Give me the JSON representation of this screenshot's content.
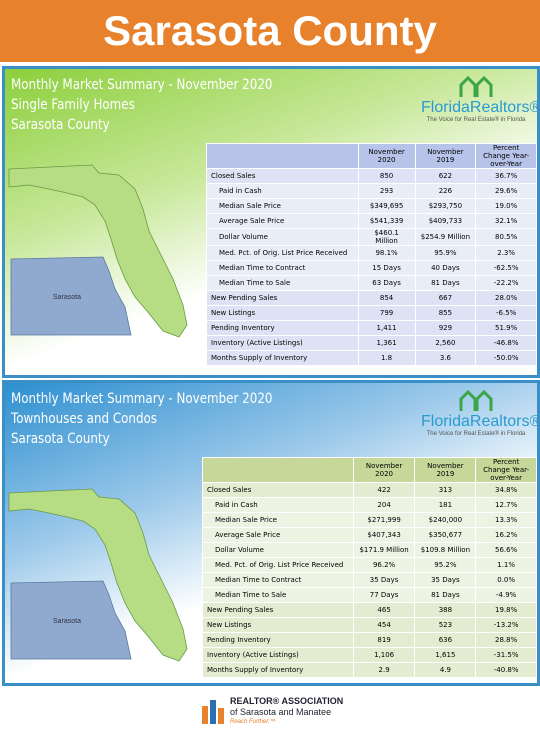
{
  "header": {
    "title": "Sarasota County"
  },
  "panels": [
    {
      "title": "Monthly Market Summary - November 2020",
      "subtitle": "Single Family Homes",
      "county": "Sarasota County",
      "logo": {
        "name": "FloridaRealtors®",
        "tagline": "The Voice for Real Estate® in Florida"
      },
      "map_label": "Sarasota",
      "table": {
        "headers": [
          "November 2020",
          "November 2019",
          "Percent Change Year-over-Year"
        ],
        "rows": [
          [
            "Closed Sales",
            "850",
            "622",
            "36.7%"
          ],
          [
            "Paid in Cash",
            "293",
            "226",
            "29.6%"
          ],
          [
            "Median Sale Price",
            "$349,695",
            "$293,750",
            "19.0%"
          ],
          [
            "Average Sale Price",
            "$541,339",
            "$409,733",
            "32.1%"
          ],
          [
            "Dollar Volume",
            "$460.1 Million",
            "$254.9 Million",
            "80.5%"
          ],
          [
            "Med. Pct. of Orig. List Price Received",
            "98.1%",
            "95.9%",
            "2.3%"
          ],
          [
            "Median Time to Contract",
            "15 Days",
            "40 Days",
            "-62.5%"
          ],
          [
            "Median Time to Sale",
            "63 Days",
            "81 Days",
            "-22.2%"
          ],
          [
            "New Pending Sales",
            "854",
            "667",
            "28.0%"
          ],
          [
            "New Listings",
            "799",
            "855",
            "-6.5%"
          ],
          [
            "Pending Inventory",
            "1,411",
            "929",
            "51.9%"
          ],
          [
            "Inventory (Active Listings)",
            "1,361",
            "2,560",
            "-46.8%"
          ],
          [
            "Months Supply of Inventory",
            "1.8",
            "3.6",
            "-50.0%"
          ]
        ]
      }
    },
    {
      "title": "Monthly Market Summary - November 2020",
      "subtitle": "Townhouses and Condos",
      "county": "Sarasota County",
      "logo": {
        "name": "FloridaRealtors®",
        "tagline": "The Voice for Real Estate® in Florida"
      },
      "map_label": "Sarasota",
      "table": {
        "headers": [
          "November 2020",
          "November 2019",
          "Percent Change Year-over-Year"
        ],
        "rows": [
          [
            "Closed Sales",
            "422",
            "313",
            "34.8%"
          ],
          [
            "Paid in Cash",
            "204",
            "181",
            "12.7%"
          ],
          [
            "Median Sale Price",
            "$271,999",
            "$240,000",
            "13.3%"
          ],
          [
            "Average Sale Price",
            "$407,343",
            "$350,677",
            "16.2%"
          ],
          [
            "Dollar Volume",
            "$171.9 Million",
            "$109.8 Million",
            "56.6%"
          ],
          [
            "Med. Pct. of Orig. List Price Received",
            "96.2%",
            "95.2%",
            "1.1%"
          ],
          [
            "Median Time to Contract",
            "35 Days",
            "35 Days",
            "0.0%"
          ],
          [
            "Median Time to Sale",
            "77 Days",
            "81 Days",
            "-4.9%"
          ],
          [
            "New Pending Sales",
            "465",
            "388",
            "19.8%"
          ],
          [
            "New Listings",
            "454",
            "523",
            "-13.2%"
          ],
          [
            "Pending Inventory",
            "819",
            "636",
            "28.8%"
          ],
          [
            "Inventory (Active Listings)",
            "1,106",
            "1,615",
            "-31.5%"
          ],
          [
            "Months Supply of Inventory",
            "2.9",
            "4.9",
            "-40.8%"
          ]
        ]
      }
    }
  ],
  "footer": {
    "org": "REALTOR® ASSOCIATION",
    "sub": "of Sarasota and Manatee",
    "slogan": "Reach Further.™"
  }
}
